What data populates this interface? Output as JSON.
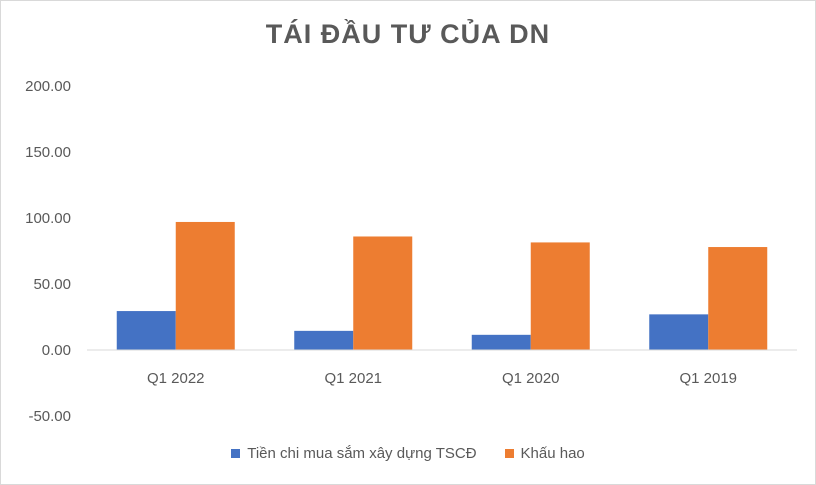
{
  "chart_data": {
    "type": "bar",
    "title": "TÁI ĐẦU TƯ CỦA DN",
    "categories": [
      "Q1 2022",
      "Q1 2021",
      "Q1 2020",
      "Q1 2019"
    ],
    "series": [
      {
        "name": "Tiền chi mua sắm xây dựng TSCĐ",
        "values": [
          29.5,
          14.5,
          11.5,
          27.0
        ],
        "color": "#4472c4"
      },
      {
        "name": "Khấu hao",
        "values": [
          97.0,
          86.0,
          81.5,
          78.0
        ],
        "color": "#ed7d31"
      }
    ],
    "y_ticks": [
      "-50.00",
      "0.00",
      "50.00",
      "100.00",
      "150.00",
      "200.00"
    ],
    "ylim": [
      -50,
      200
    ],
    "grid": false,
    "legend_position": "bottom"
  }
}
